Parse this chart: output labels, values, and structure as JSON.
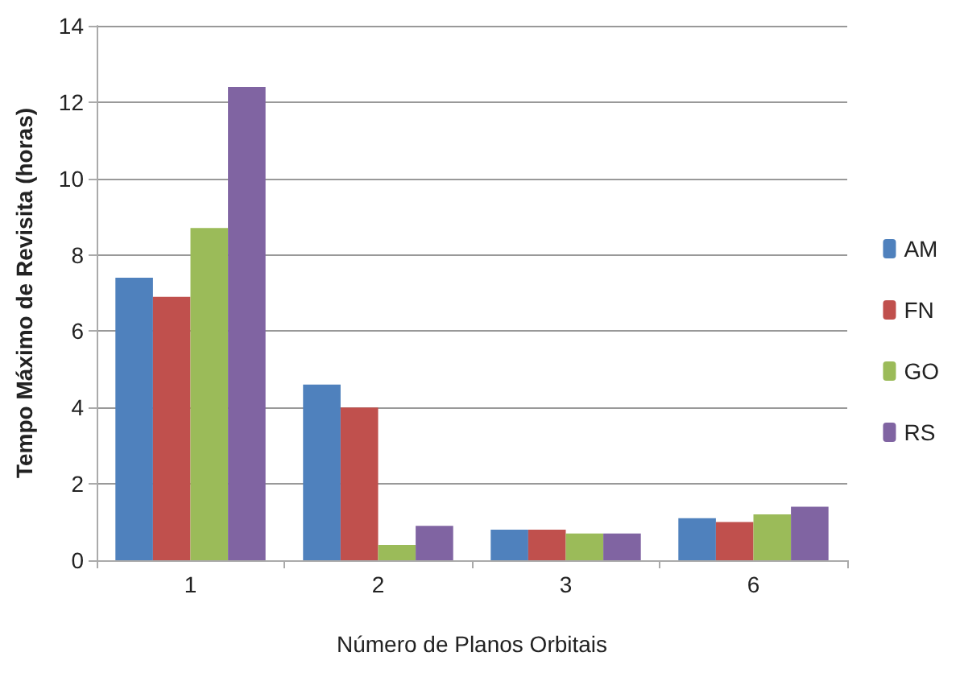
{
  "chart_data": {
    "type": "bar",
    "xlabel": "Número de Planos Orbitais",
    "ylabel": "Tempo Máximo de Revisita (horas)",
    "categories": [
      "1",
      "2",
      "3",
      "6"
    ],
    "series": [
      {
        "name": "AM",
        "color": "#4f81bd",
        "values": [
          7.4,
          4.6,
          0.8,
          1.1
        ]
      },
      {
        "name": "FN",
        "color": "#c0504d",
        "values": [
          6.9,
          4.0,
          0.8,
          1.0
        ]
      },
      {
        "name": "GO",
        "color": "#9bbb59",
        "values": [
          8.7,
          0.4,
          0.7,
          1.2
        ]
      },
      {
        "name": "RS",
        "color": "#8064a2",
        "values": [
          12.4,
          0.9,
          0.7,
          1.4
        ]
      }
    ],
    "ylim": [
      0,
      14
    ],
    "yticks": [
      0,
      2,
      4,
      6,
      8,
      10,
      12,
      14
    ],
    "grid": "y",
    "legend": "right"
  }
}
